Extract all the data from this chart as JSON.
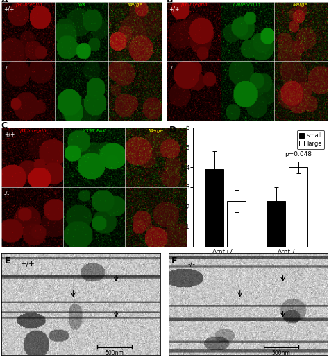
{
  "panel_D": {
    "groups": [
      "Arnt+/+",
      "Arnt-/-"
    ],
    "small_values": [
      3.9,
      2.3
    ],
    "large_values": [
      2.3,
      4.0
    ],
    "small_errors": [
      0.9,
      0.7
    ],
    "large_errors": [
      0.55,
      0.3
    ],
    "small_color": "#000000",
    "large_color": "#ffffff",
    "bar_edge_color": "#000000",
    "ylim": [
      0,
      6
    ],
    "yticks": [
      1,
      2,
      3,
      4,
      5,
      6
    ],
    "p_value_text": "p=0.048",
    "legend_labels": [
      "small",
      "large"
    ],
    "bar_width": 0.3,
    "group_positions": [
      0.0,
      1.0
    ]
  },
  "figure_width": 4.74,
  "figure_height": 5.15,
  "background_color": "#ffffff"
}
